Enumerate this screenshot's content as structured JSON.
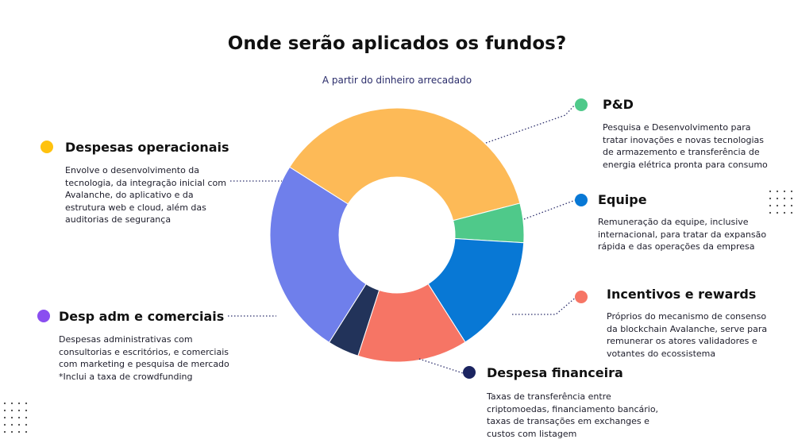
{
  "title": "Onde serão aplicados os fundos?",
  "subtitle": "A partir do dinheiro arrecadado",
  "chart_data": {
    "type": "pie",
    "donut": true,
    "slices": [
      {
        "label": "Despesas operacionais",
        "value": 37,
        "color": "#FDBA57"
      },
      {
        "label": "P&D",
        "value": 5,
        "color": "#4FC98A"
      },
      {
        "label": "Equipe",
        "value": 15,
        "color": "#0878D5"
      },
      {
        "label": "Incentivos e rewards",
        "value": 14,
        "color": "#F67565"
      },
      {
        "label": "Despesa financeira",
        "value": 4,
        "color": "#22335A"
      },
      {
        "label": "Desp adm e comerciais",
        "value": 25,
        "color": "#6F7FEB"
      }
    ]
  },
  "legend": {
    "operacionais": {
      "heading": "Despesas operacionais",
      "lines": [
        "Envolve o desenvolvimento da",
        "tecnologia, da integração inicial com",
        "Avalanche, do aplicativo e da",
        "estrutura web e cloud, além das",
        "auditorias de segurança"
      ],
      "color": "#FFC20E"
    },
    "pd": {
      "heading": "P&D",
      "lines": [
        "Pesquisa e Desenvolvimento para",
        "tratar inovações e novas tecnologias",
        "de armazemento e transferência de",
        "energia elétrica pronta para consumo"
      ],
      "color": "#4FC98A"
    },
    "equipe": {
      "heading": "Equipe",
      "lines": [
        "Remuneração da equipe, inclusive",
        "internacional, para tratar da expansão",
        "rápida e das operações da empresa"
      ],
      "color": "#0878D5"
    },
    "incentivos": {
      "heading": "Incentivos e rewards",
      "lines": [
        "Próprios do mecanismo de consenso",
        "da blockchain Avalanche, serve para",
        "remunerar os atores validadores e",
        "votantes do ecossistema"
      ],
      "color": "#F67565"
    },
    "adm": {
      "heading": "Desp adm e comerciais",
      "lines": [
        "Despesas administrativas com",
        "consultorias e escritórios, e comerciais",
        "com marketing e pesquisa de mercado",
        "*Inclui a taxa de crowdfunding"
      ],
      "color": "#8A4EF0"
    },
    "financeira": {
      "heading": "Despesa financeira",
      "lines": [
        "Taxas de transferência entre",
        "criptomoedas, financiamento bancário,",
        "taxas de transações em exchanges e",
        "custos com listagem"
      ],
      "color": "#1B2460"
    }
  }
}
